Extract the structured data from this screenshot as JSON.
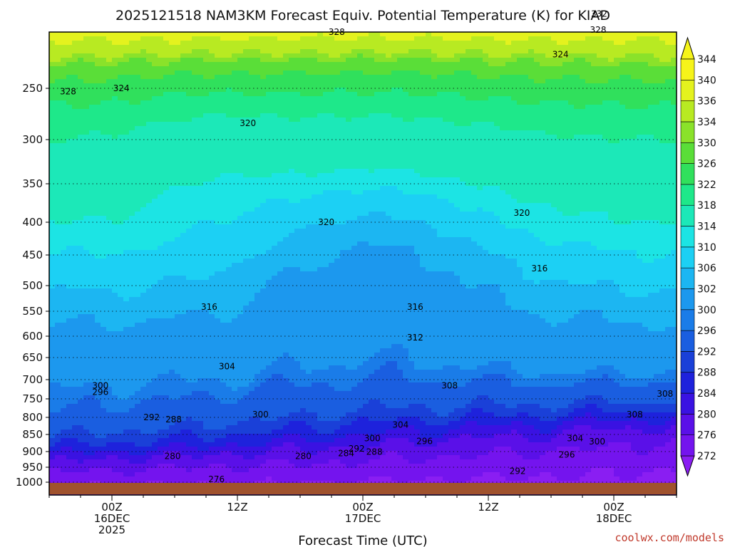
{
  "chart_data": {
    "type": "heatmap",
    "title": "2025121518 NAM3KM Forecast Equiv. Potential Temperature (K) for KIAD",
    "xlabel": "Forecast Time (UTC)",
    "ylabel": "",
    "credit": "coolwx.com/models",
    "x_ticks": [
      {
        "hour": 6,
        "line1": "00Z",
        "line2": "16DEC",
        "line3": "2025"
      },
      {
        "hour": 18,
        "line1": "12Z",
        "line2": "",
        "line3": ""
      },
      {
        "hour": 30,
        "line1": "00Z",
        "line2": "17DEC",
        "line3": ""
      },
      {
        "hour": 42,
        "line1": "12Z",
        "line2": "",
        "line3": ""
      },
      {
        "hour": 54,
        "line1": "00Z",
        "line2": "18DEC",
        "line3": ""
      }
    ],
    "x_range_hours": [
      0,
      60
    ],
    "y_ticks": [
      250,
      300,
      350,
      400,
      450,
      500,
      550,
      600,
      650,
      700,
      750,
      800,
      850,
      900,
      950,
      1000
    ],
    "y_range_hpa": [
      200,
      1000
    ],
    "colorbar_levels": [
      272,
      276,
      280,
      284,
      288,
      292,
      296,
      300,
      302,
      306,
      310,
      314,
      318,
      322,
      326,
      330,
      334,
      336,
      340,
      344
    ],
    "colorbar_colors": [
      "#8a1ef2",
      "#7414ee",
      "#5a10e8",
      "#3a12e2",
      "#1e22dc",
      "#1a40d8",
      "#1a5ee0",
      "#1a7ce8",
      "#1c98ee",
      "#1cb6f2",
      "#1cd0f4",
      "#1ce4e4",
      "#1ce8b8",
      "#1ee88a",
      "#30e05c",
      "#5ade38",
      "#8ae22a",
      "#b8ea22",
      "#e4f21e",
      "#f6f41a"
    ],
    "contour_labels": [
      {
        "t": 1.8,
        "p": 253,
        "v": "328"
      },
      {
        "t": 6.9,
        "p": 250,
        "v": "324"
      },
      {
        "t": 19.0,
        "p": 284,
        "v": "320"
      },
      {
        "t": 27.5,
        "p": 200,
        "v": "328"
      },
      {
        "t": 48.9,
        "p": 220,
        "v": "324"
      },
      {
        "t": 52.5,
        "p": 198,
        "v": "328"
      },
      {
        "t": 52.6,
        "p": 184,
        "v": "332"
      },
      {
        "t": 26.5,
        "p": 400,
        "v": "320"
      },
      {
        "t": 45.2,
        "p": 388,
        "v": "320"
      },
      {
        "t": 46.9,
        "p": 472,
        "v": "316"
      },
      {
        "t": 35.0,
        "p": 542,
        "v": "316"
      },
      {
        "t": 35.0,
        "p": 603,
        "v": "312"
      },
      {
        "t": 15.3,
        "p": 542,
        "v": "316"
      },
      {
        "t": 17.0,
        "p": 670,
        "v": "304"
      },
      {
        "t": 38.3,
        "p": 716,
        "v": "308"
      },
      {
        "t": 58.9,
        "p": 737,
        "v": "308"
      },
      {
        "t": 4.9,
        "p": 716,
        "v": "300"
      },
      {
        "t": 4.9,
        "p": 732,
        "v": "296"
      },
      {
        "t": 9.8,
        "p": 800,
        "v": "292"
      },
      {
        "t": 11.9,
        "p": 806,
        "v": "288"
      },
      {
        "t": 20.2,
        "p": 792,
        "v": "300"
      },
      {
        "t": 33.6,
        "p": 822,
        "v": "304"
      },
      {
        "t": 50.3,
        "p": 861,
        "v": "304"
      },
      {
        "t": 52.4,
        "p": 871,
        "v": "300"
      },
      {
        "t": 56.0,
        "p": 792,
        "v": "308"
      },
      {
        "t": 30.9,
        "p": 861,
        "v": "300"
      },
      {
        "t": 35.9,
        "p": 870,
        "v": "296"
      },
      {
        "t": 29.4,
        "p": 892,
        "v": "292"
      },
      {
        "t": 28.4,
        "p": 906,
        "v": "284"
      },
      {
        "t": 31.1,
        "p": 901,
        "v": "288"
      },
      {
        "t": 49.5,
        "p": 910,
        "v": "296"
      },
      {
        "t": 11.8,
        "p": 915,
        "v": "280"
      },
      {
        "t": 24.3,
        "p": 915,
        "v": "280"
      },
      {
        "t": 16.0,
        "p": 990,
        "v": "276"
      },
      {
        "t": 44.8,
        "p": 963,
        "v": "292"
      }
    ]
  }
}
